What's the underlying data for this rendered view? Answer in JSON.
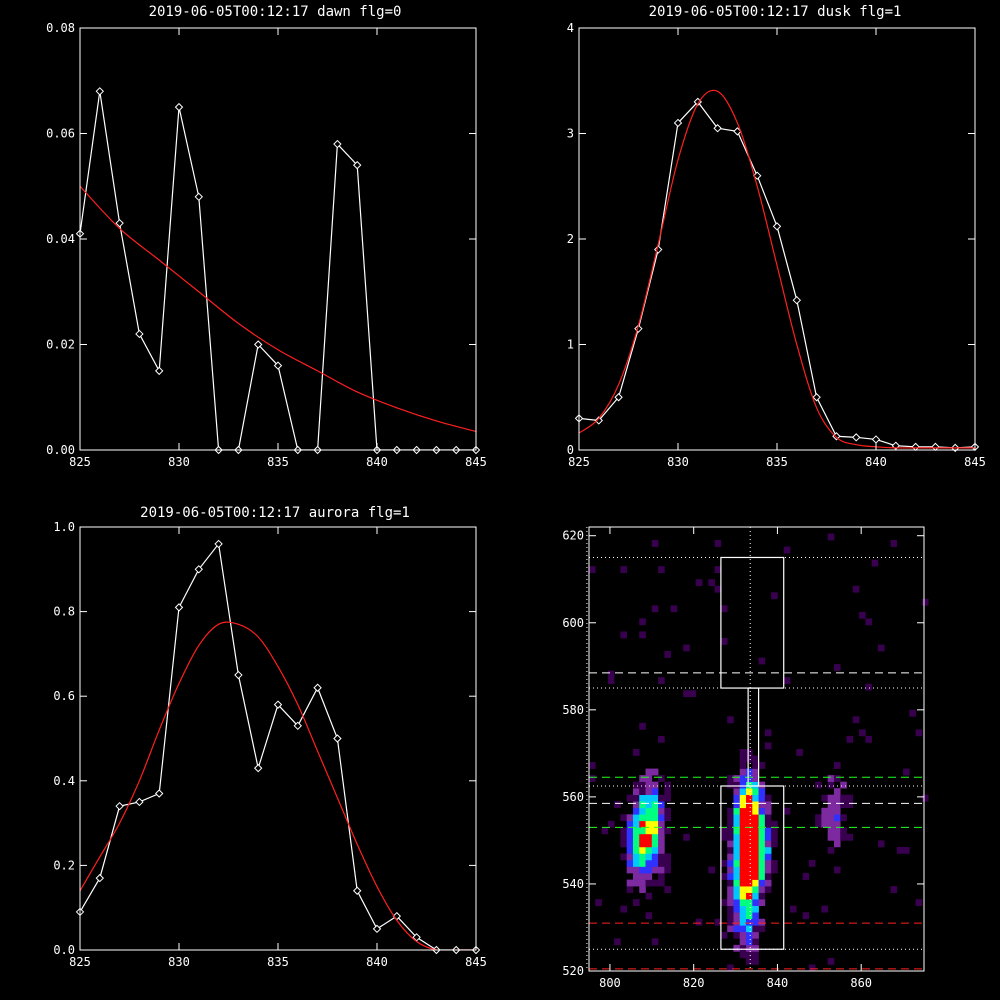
{
  "chart_data": [
    {
      "type": "line",
      "title": "2019-06-05T00:12:17 dawn flg=0",
      "xlim": [
        825,
        845
      ],
      "ylim": [
        0,
        0.08
      ],
      "xticks": [
        825,
        830,
        835,
        840,
        845
      ],
      "yticks": [
        0.0,
        0.02,
        0.04,
        0.06,
        0.08
      ],
      "ytick_labels": [
        "0.00",
        "0.02",
        "0.04",
        "0.06",
        "0.08"
      ],
      "series": [
        {
          "style": "white-diamonds",
          "color": "#ffffff",
          "x": [
            825,
            826,
            827,
            828,
            829,
            830,
            831,
            832,
            833,
            834,
            835,
            836,
            837,
            838,
            839,
            840,
            841,
            842,
            843,
            844,
            845
          ],
          "y": [
            0.041,
            0.068,
            0.043,
            0.022,
            0.015,
            0.065,
            0.048,
            0.0,
            0.0,
            0.02,
            0.016,
            0.0,
            0.0,
            0.058,
            0.054,
            0.0,
            0.0,
            0.0,
            0.0,
            0.0,
            0.0
          ]
        },
        {
          "style": "red-fit",
          "color": "#ff2020",
          "x": [
            825,
            827,
            829,
            831,
            833,
            835,
            837,
            839,
            841,
            843,
            845
          ],
          "y": [
            0.05,
            0.042,
            0.036,
            0.03,
            0.024,
            0.019,
            0.015,
            0.011,
            0.008,
            0.0055,
            0.0035
          ]
        }
      ]
    },
    {
      "type": "line",
      "title": "2019-06-05T00:12:17 dusk flg=1",
      "xlim": [
        825,
        845
      ],
      "ylim": [
        0,
        4
      ],
      "xticks": [
        825,
        830,
        835,
        840,
        845
      ],
      "yticks": [
        0,
        1,
        2,
        3,
        4
      ],
      "ytick_labels": [
        "0",
        "1",
        "2",
        "3",
        "4"
      ],
      "series": [
        {
          "style": "white-diamonds",
          "color": "#ffffff",
          "x": [
            825,
            826,
            827,
            828,
            829,
            830,
            831,
            832,
            833,
            834,
            835,
            836,
            837,
            838,
            839,
            840,
            841,
            842,
            843,
            844,
            845
          ],
          "y": [
            0.3,
            0.28,
            0.5,
            1.15,
            1.9,
            3.1,
            3.3,
            3.05,
            3.02,
            2.6,
            2.12,
            1.42,
            0.5,
            0.13,
            0.12,
            0.1,
            0.04,
            0.03,
            0.03,
            0.02,
            0.03
          ]
        },
        {
          "style": "red-fit",
          "color": "#ff2020",
          "x": [
            825,
            826,
            827,
            828,
            829,
            830,
            831,
            832,
            833,
            834,
            835,
            836,
            837,
            838,
            839,
            840,
            841,
            842,
            843,
            844,
            845
          ],
          "y": [
            0.16,
            0.3,
            0.62,
            1.18,
            1.95,
            2.75,
            3.28,
            3.4,
            3.1,
            2.5,
            1.75,
            1.0,
            0.4,
            0.12,
            0.05,
            0.03,
            0.02,
            0.02,
            0.02,
            0.02,
            0.02
          ]
        }
      ]
    },
    {
      "type": "line",
      "title": "2019-06-05T00:12:17 aurora flg=1",
      "xlim": [
        825,
        845
      ],
      "ylim": [
        0,
        1.0
      ],
      "xticks": [
        825,
        830,
        835,
        840,
        845
      ],
      "yticks": [
        0.0,
        0.2,
        0.4,
        0.6,
        0.8,
        1.0
      ],
      "ytick_labels": [
        "0.0",
        "0.2",
        "0.4",
        "0.6",
        "0.8",
        "1.0"
      ],
      "series": [
        {
          "style": "white-diamonds",
          "color": "#ffffff",
          "x": [
            825,
            826,
            827,
            828,
            829,
            830,
            831,
            832,
            833,
            834,
            835,
            836,
            837,
            838,
            839,
            840,
            841,
            842,
            843,
            844,
            845
          ],
          "y": [
            0.09,
            0.17,
            0.34,
            0.35,
            0.37,
            0.81,
            0.9,
            0.96,
            0.65,
            0.43,
            0.58,
            0.53,
            0.62,
            0.5,
            0.14,
            0.05,
            0.08,
            0.03,
            0.0,
            0.0,
            0.0
          ]
        },
        {
          "style": "red-fit",
          "color": "#ff2020",
          "x": [
            825,
            826,
            827,
            828,
            829,
            830,
            831,
            832,
            833,
            834,
            835,
            836,
            837,
            838,
            839,
            840,
            841,
            842,
            843,
            844,
            845
          ],
          "y": [
            0.14,
            0.22,
            0.3,
            0.4,
            0.52,
            0.63,
            0.72,
            0.77,
            0.77,
            0.74,
            0.67,
            0.58,
            0.47,
            0.36,
            0.25,
            0.15,
            0.07,
            0.02,
            0.0,
            0.0,
            0.0
          ]
        }
      ]
    },
    {
      "type": "heatmap",
      "title": "",
      "xlim": [
        795,
        875
      ],
      "ylim": [
        520,
        622
      ],
      "xticks": [
        800,
        820,
        840,
        860
      ],
      "yticks": [
        520,
        540,
        560,
        580,
        600,
        620
      ],
      "ytick_labels": [
        "520",
        "540",
        "560",
        "580",
        "600",
        "620"
      ],
      "colormap": [
        "#000000",
        "#3a0050",
        "#7d2aa0",
        "#3030ff",
        "#00c8ff",
        "#00ff80",
        "#ffff00",
        "#ff0000"
      ],
      "hotspots": [
        {
          "x": 832,
          "y": 555,
          "value": 1.0
        },
        {
          "x": 809,
          "y": 553,
          "value": 0.75
        },
        {
          "x": 834,
          "y": 547,
          "value": 0.8
        },
        {
          "x": 831,
          "y": 540,
          "value": 0.55
        },
        {
          "x": 806,
          "y": 548,
          "value": 0.5
        },
        {
          "x": 832,
          "y": 532,
          "value": 0.4
        },
        {
          "x": 853,
          "y": 555,
          "value": 0.3
        }
      ],
      "boxes": [
        {
          "x0": 826.5,
          "x1": 841.5,
          "y0": 585,
          "y1": 615,
          "color": "#ffffff",
          "style": "solid"
        },
        {
          "x0": 833,
          "x1": 835.5,
          "y0": 562.5,
          "y1": 585,
          "color": "#ffffff",
          "style": "solid"
        },
        {
          "x0": 826.5,
          "x1": 841.5,
          "y0": 525,
          "y1": 562.5,
          "color": "#ffffff",
          "style": "solid"
        }
      ],
      "hlines": [
        {
          "y": 615,
          "color": "#ffffff",
          "style": "dotted"
        },
        {
          "y": 588.5,
          "color": "#ffffff",
          "style": "dashed"
        },
        {
          "y": 585,
          "color": "#ffffff",
          "style": "dotted"
        },
        {
          "y": 564.5,
          "color": "#20ff20",
          "style": "dashed"
        },
        {
          "y": 562.5,
          "color": "#ffffff",
          "style": "dotted"
        },
        {
          "y": 558.5,
          "color": "#ffffff",
          "style": "dashed"
        },
        {
          "y": 553,
          "color": "#20ff20",
          "style": "dashed"
        },
        {
          "y": 531,
          "color": "#ff2020",
          "style": "dashed"
        },
        {
          "y": 525,
          "color": "#ffffff",
          "style": "dotted"
        },
        {
          "y": 520.5,
          "color": "#ff2020",
          "style": "dashed"
        }
      ],
      "vlines": [
        {
          "x": 794.5,
          "color": "#ffffff",
          "style": "dotted"
        },
        {
          "x": 833.5,
          "color": "#ffffff",
          "style": "dotted"
        }
      ]
    }
  ]
}
